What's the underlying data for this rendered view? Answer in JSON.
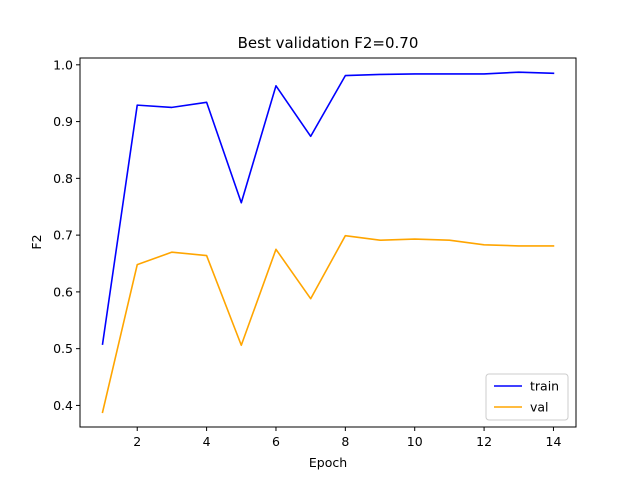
{
  "chart_data": {
    "type": "line",
    "title": "Best validation F2=0.70",
    "xlabel": "Epoch",
    "ylabel": "F2",
    "xlim": [
      0.35,
      14.65
    ],
    "ylim": [
      0.362,
      1.012
    ],
    "xticks": [
      2,
      4,
      6,
      8,
      10,
      12,
      14
    ],
    "yticks": [
      0.4,
      0.5,
      0.6,
      0.7,
      0.8,
      0.9,
      1.0
    ],
    "ytick_labels": [
      "0.4",
      "0.5",
      "0.6",
      "0.7",
      "0.8",
      "0.9",
      "1.0"
    ],
    "grid": false,
    "legend_position": "lower-right",
    "x": [
      1,
      2,
      3,
      4,
      5,
      6,
      7,
      8,
      9,
      10,
      11,
      12,
      13,
      14
    ],
    "series": [
      {
        "name": "train",
        "color": "#0000ff",
        "values": [
          0.508,
          0.929,
          0.925,
          0.934,
          0.757,
          0.963,
          0.874,
          0.981,
          0.983,
          0.984,
          0.984,
          0.984,
          0.987,
          0.985
        ]
      },
      {
        "name": "val",
        "color": "#ffa500",
        "values": [
          0.388,
          0.648,
          0.67,
          0.664,
          0.506,
          0.675,
          0.588,
          0.699,
          0.691,
          0.693,
          0.691,
          0.683,
          0.681,
          0.681
        ]
      }
    ]
  }
}
